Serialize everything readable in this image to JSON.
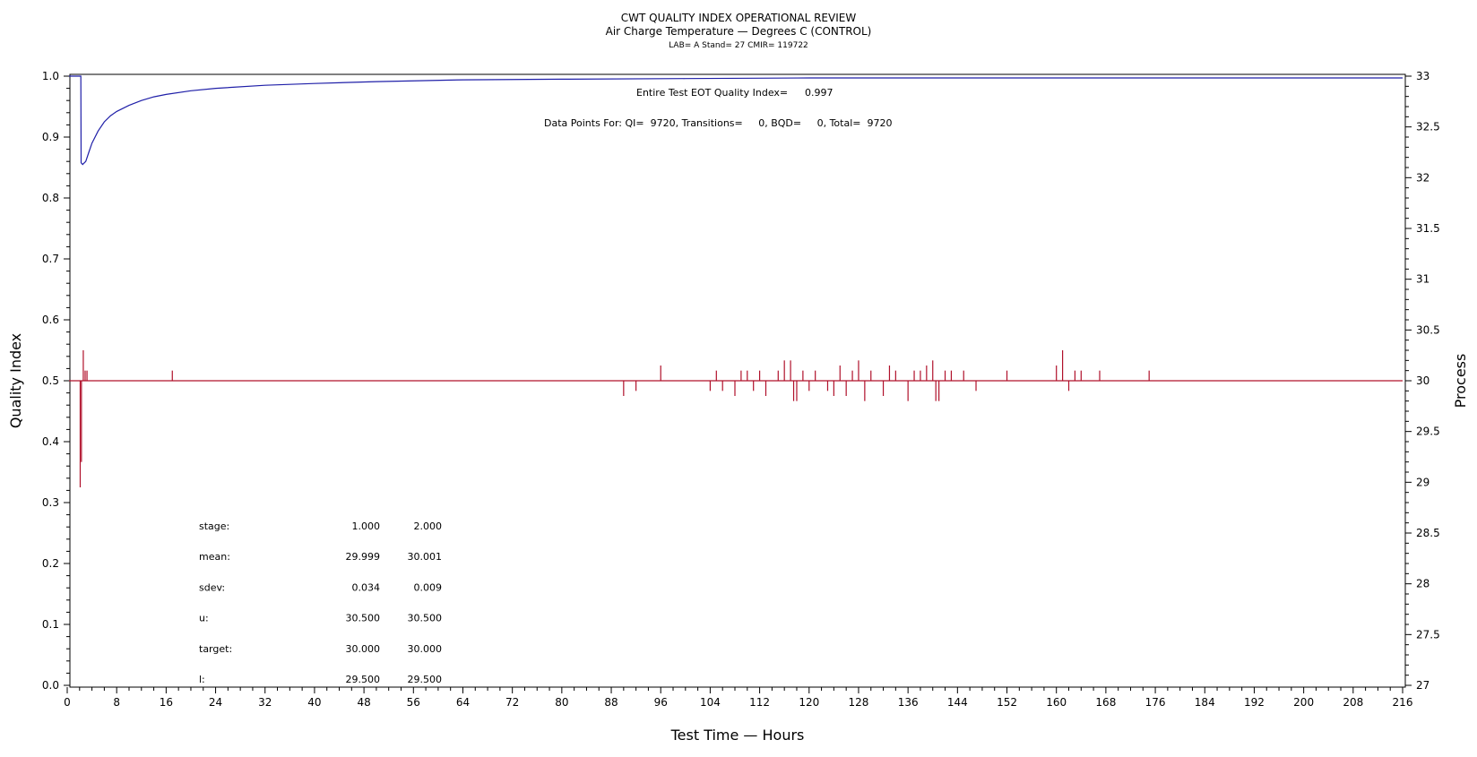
{
  "chart_data": {
    "type": "line",
    "title": "CWT QUALITY INDEX OPERATIONAL REVIEW",
    "subtitle": "Air Charge Temperature — Degrees C (CONTROL)",
    "subtitle2": "LAB= A Stand= 27 CMIR= 119722",
    "xlabel": "Test Time — Hours",
    "ylabel": "Quality Index",
    "y2label": "Process",
    "xlim": [
      0,
      216
    ],
    "ylim": [
      0.0,
      1.0
    ],
    "y2lim": [
      27,
      33
    ],
    "x_ticks": [
      0,
      8,
      16,
      24,
      32,
      40,
      48,
      56,
      64,
      72,
      80,
      88,
      96,
      104,
      112,
      120,
      128,
      136,
      144,
      152,
      160,
      168,
      176,
      184,
      192,
      200,
      208,
      216
    ],
    "y_ticks": [
      "0.0",
      "0.1",
      "0.2",
      "0.3",
      "0.4",
      "0.5",
      "0.6",
      "0.7",
      "0.8",
      "0.9",
      "1.0"
    ],
    "y2_ticks": [
      "27",
      "27.5",
      "28",
      "28.5",
      "29",
      "29.5",
      "30",
      "30.5",
      "31",
      "31.5",
      "32",
      "32.5",
      "33"
    ],
    "annotations": {
      "eot_label": "Entire Test EOT Quality Index=",
      "eot_value": "0.997",
      "points_line": "Data Points For: QI=  9720, Transitions=     0, BQD=     0, Total=  9720"
    },
    "series": [
      {
        "axis": "left",
        "color": "#1f1fa8",
        "points": [
          [
            0.3,
            1.0
          ],
          [
            2.2,
            1.0
          ],
          [
            2.25,
            0.858
          ],
          [
            2.5,
            0.855
          ],
          [
            3.0,
            0.86
          ],
          [
            3.5,
            0.875
          ],
          [
            4,
            0.89
          ],
          [
            5,
            0.91
          ],
          [
            6,
            0.925
          ],
          [
            7,
            0.935
          ],
          [
            8,
            0.942
          ],
          [
            10,
            0.952
          ],
          [
            12,
            0.96
          ],
          [
            14,
            0.966
          ],
          [
            16,
            0.97
          ],
          [
            20,
            0.976
          ],
          [
            24,
            0.98
          ],
          [
            32,
            0.985
          ],
          [
            40,
            0.988
          ],
          [
            50,
            0.991
          ],
          [
            64,
            0.994
          ],
          [
            80,
            0.995
          ],
          [
            100,
            0.996
          ],
          [
            120,
            0.997
          ],
          [
            160,
            0.997
          ],
          [
            216,
            0.997
          ]
        ]
      },
      {
        "axis": "right",
        "color": "#b0102a",
        "baseline": 30.0,
        "spikes": [
          [
            2.1,
            28.95
          ],
          [
            2.3,
            29.2
          ],
          [
            2.6,
            30.3
          ],
          [
            2.9,
            30.1
          ],
          [
            3.2,
            30.1
          ],
          [
            17,
            30.1
          ],
          [
            90,
            29.85
          ],
          [
            92,
            29.9
          ],
          [
            96,
            30.15
          ],
          [
            104,
            29.9
          ],
          [
            105,
            30.1
          ],
          [
            106,
            29.9
          ],
          [
            108,
            29.85
          ],
          [
            109,
            30.1
          ],
          [
            110,
            30.1
          ],
          [
            111,
            29.9
          ],
          [
            112,
            30.1
          ],
          [
            113,
            29.85
          ],
          [
            115,
            30.1
          ],
          [
            116,
            30.2
          ],
          [
            117,
            30.2
          ],
          [
            117.5,
            29.8
          ],
          [
            118,
            29.8
          ],
          [
            119,
            30.1
          ],
          [
            120,
            29.9
          ],
          [
            121,
            30.1
          ],
          [
            123,
            29.9
          ],
          [
            124,
            29.85
          ],
          [
            125,
            30.15
          ],
          [
            126,
            29.85
          ],
          [
            127,
            30.1
          ],
          [
            128,
            30.2
          ],
          [
            129,
            29.8
          ],
          [
            130,
            30.1
          ],
          [
            132,
            29.85
          ],
          [
            133,
            30.15
          ],
          [
            134,
            30.1
          ],
          [
            136,
            29.8
          ],
          [
            137,
            30.1
          ],
          [
            138,
            30.1
          ],
          [
            139,
            30.15
          ],
          [
            140,
            30.2
          ],
          [
            140.5,
            29.8
          ],
          [
            141,
            29.8
          ],
          [
            142,
            30.1
          ],
          [
            143,
            30.1
          ],
          [
            145,
            30.1
          ],
          [
            147,
            29.9
          ],
          [
            152,
            30.1
          ],
          [
            160,
            30.15
          ],
          [
            161,
            30.3
          ],
          [
            162,
            29.9
          ],
          [
            163,
            30.1
          ],
          [
            164,
            30.1
          ],
          [
            167,
            30.1
          ],
          [
            175,
            30.1
          ]
        ]
      }
    ],
    "stats_table": {
      "rows": [
        {
          "label": "stage:",
          "v1": "1.000",
          "v2": "2.000"
        },
        {
          "label": "mean:",
          "v1": "29.999",
          "v2": "30.001"
        },
        {
          "label": "sdev:",
          "v1": "0.034",
          "v2": "0.009"
        },
        {
          "label": "u:",
          "v1": "30.500",
          "v2": "30.500"
        },
        {
          "label": "target:",
          "v1": "30.000",
          "v2": "30.000"
        },
        {
          "label": "l:",
          "v1": "29.500",
          "v2": "29.500"
        }
      ]
    }
  }
}
